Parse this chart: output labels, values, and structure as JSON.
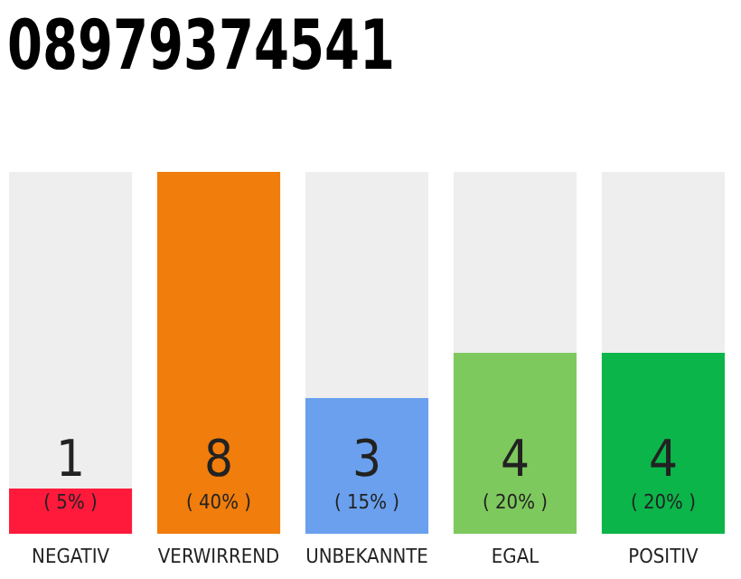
{
  "chart_data": {
    "type": "bar",
    "title": "08979374541",
    "categories": [
      "NEGATIV",
      "VERWIRREND",
      "UNBEKANNTE",
      "EGAL",
      "POSITIV"
    ],
    "values": [
      1,
      8,
      3,
      4,
      4
    ],
    "colors": [
      "#ff1a3c",
      "#f07d0c",
      "#6aa0ee",
      "#7ec95e",
      "#0bb54a"
    ],
    "ylim": [
      0,
      8
    ],
    "tick_labels": "x",
    "data_labels": true,
    "annotations": [
      "( 5% )",
      "( 40% )",
      "( 15% )",
      "( 20% )",
      "( 20% )"
    ]
  }
}
